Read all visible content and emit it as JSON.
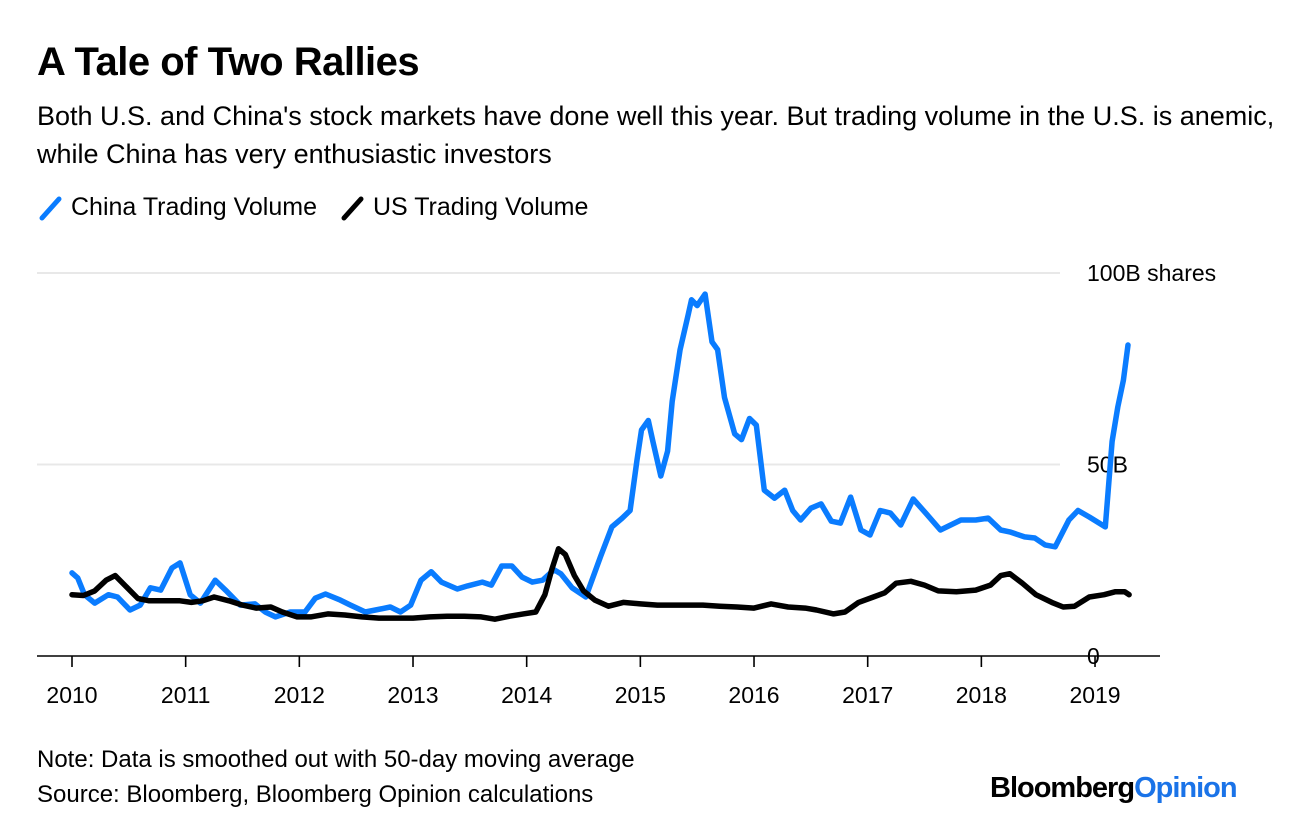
{
  "header": {
    "title": "A Tale of Two Rallies",
    "subtitle": "Both U.S. and China's stock markets have done well this year. But trading volume in the U.S. is anemic, while China has very enthusiastic investors"
  },
  "footer": {
    "note": "Note: Data is smoothed out with 50-day moving average",
    "source": "Source: Bloomberg, Bloomberg Opinion calculations",
    "logo_main": "Bloomberg",
    "logo_accent": "Opinion"
  },
  "colors": {
    "china": "#0a7cff",
    "us": "#000000",
    "gridline": "#e8e8e8",
    "logo_accent": "#1a73e8"
  },
  "chart_data": {
    "type": "line",
    "title": "A Tale of Two Rallies",
    "xlabel": "",
    "ylabel": "",
    "xlim": [
      2009.7,
      2019.6
    ],
    "ylim": [
      0,
      100
    ],
    "x_ticks": [
      2010,
      2011,
      2012,
      2013,
      2014,
      2015,
      2016,
      2017,
      2018,
      2019
    ],
    "x_tick_labels": [
      "2010",
      "2011",
      "2012",
      "2013",
      "2014",
      "2015",
      "2016",
      "2017",
      "2018",
      "2019"
    ],
    "y_ticks": [
      0,
      50,
      100
    ],
    "y_tick_labels": [
      "0",
      "50B",
      "100B shares"
    ],
    "grid": true,
    "legend_position": "top-left",
    "series": [
      {
        "name": "China Trading Volume",
        "color": "#0a7cff",
        "points": [
          [
            2010.0,
            21.7
          ],
          [
            2010.05,
            20.4
          ],
          [
            2010.11,
            16.0
          ],
          [
            2010.2,
            13.8
          ],
          [
            2010.32,
            16.0
          ],
          [
            2010.4,
            15.4
          ],
          [
            2010.51,
            12.0
          ],
          [
            2010.6,
            13.3
          ],
          [
            2010.69,
            17.8
          ],
          [
            2010.78,
            17.2
          ],
          [
            2010.88,
            23.0
          ],
          [
            2010.95,
            24.3
          ],
          [
            2011.04,
            16.0
          ],
          [
            2011.13,
            13.8
          ],
          [
            2011.26,
            19.8
          ],
          [
            2011.35,
            17.2
          ],
          [
            2011.48,
            13.3
          ],
          [
            2011.61,
            13.6
          ],
          [
            2011.7,
            11.5
          ],
          [
            2011.79,
            10.2
          ],
          [
            2011.92,
            11.5
          ],
          [
            2012.05,
            11.5
          ],
          [
            2012.14,
            15.1
          ],
          [
            2012.23,
            16.2
          ],
          [
            2012.36,
            14.6
          ],
          [
            2012.45,
            13.3
          ],
          [
            2012.58,
            11.5
          ],
          [
            2012.67,
            12.0
          ],
          [
            2012.8,
            12.8
          ],
          [
            2012.89,
            11.5
          ],
          [
            2012.98,
            13.3
          ],
          [
            2013.07,
            19.8
          ],
          [
            2013.16,
            22.0
          ],
          [
            2013.25,
            19.3
          ],
          [
            2013.39,
            17.5
          ],
          [
            2013.48,
            18.3
          ],
          [
            2013.61,
            19.3
          ],
          [
            2013.69,
            18.5
          ],
          [
            2013.78,
            23.5
          ],
          [
            2013.87,
            23.5
          ],
          [
            2013.96,
            20.6
          ],
          [
            2014.05,
            19.3
          ],
          [
            2014.14,
            19.8
          ],
          [
            2014.24,
            22.5
          ],
          [
            2014.3,
            21.5
          ],
          [
            2014.4,
            17.8
          ],
          [
            2014.52,
            15.4
          ],
          [
            2014.65,
            26.0
          ],
          [
            2014.75,
            33.7
          ],
          [
            2014.84,
            36.0
          ],
          [
            2014.91,
            38.0
          ],
          [
            2014.97,
            51.0
          ],
          [
            2015.01,
            59.0
          ],
          [
            2015.07,
            61.5
          ],
          [
            2015.11,
            56.0
          ],
          [
            2015.18,
            47.0
          ],
          [
            2015.24,
            53.5
          ],
          [
            2015.28,
            66.5
          ],
          [
            2015.35,
            80.0
          ],
          [
            2015.42,
            89.0
          ],
          [
            2015.45,
            93.0
          ],
          [
            2015.5,
            91.5
          ],
          [
            2015.57,
            94.5
          ],
          [
            2015.63,
            82.0
          ],
          [
            2015.68,
            80.0
          ],
          [
            2015.74,
            67.5
          ],
          [
            2015.83,
            58.0
          ],
          [
            2015.89,
            56.5
          ],
          [
            2015.96,
            62.0
          ],
          [
            2016.02,
            60.3
          ],
          [
            2016.09,
            43.3
          ],
          [
            2016.18,
            41.2
          ],
          [
            2016.27,
            43.3
          ],
          [
            2016.34,
            38.0
          ],
          [
            2016.41,
            35.5
          ],
          [
            2016.5,
            38.6
          ],
          [
            2016.59,
            39.7
          ],
          [
            2016.68,
            35.2
          ],
          [
            2016.76,
            34.7
          ],
          [
            2016.85,
            41.5
          ],
          [
            2016.94,
            32.9
          ],
          [
            2017.02,
            31.6
          ],
          [
            2017.11,
            38.0
          ],
          [
            2017.2,
            37.3
          ],
          [
            2017.29,
            34.2
          ],
          [
            2017.4,
            41.0
          ],
          [
            2017.51,
            37.3
          ],
          [
            2017.64,
            32.9
          ],
          [
            2017.73,
            34.2
          ],
          [
            2017.82,
            35.5
          ],
          [
            2017.95,
            35.5
          ],
          [
            2018.06,
            36.0
          ],
          [
            2018.17,
            32.9
          ],
          [
            2018.25,
            32.4
          ],
          [
            2018.38,
            31.1
          ],
          [
            2018.47,
            30.8
          ],
          [
            2018.56,
            29.0
          ],
          [
            2018.65,
            28.5
          ],
          [
            2018.77,
            35.5
          ],
          [
            2018.85,
            38.0
          ],
          [
            2018.95,
            36.3
          ],
          [
            2019.09,
            33.7
          ],
          [
            2019.15,
            56.0
          ],
          [
            2019.2,
            65.0
          ],
          [
            2019.25,
            72.0
          ],
          [
            2019.29,
            81.2
          ]
        ]
      },
      {
        "name": "US Trading Volume",
        "color": "#000000",
        "points": [
          [
            2010.0,
            16.0
          ],
          [
            2010.1,
            15.8
          ],
          [
            2010.2,
            17.0
          ],
          [
            2010.3,
            19.8
          ],
          [
            2010.38,
            21.0
          ],
          [
            2010.48,
            18.0
          ],
          [
            2010.58,
            15.0
          ],
          [
            2010.68,
            14.4
          ],
          [
            2010.8,
            14.4
          ],
          [
            2010.95,
            14.4
          ],
          [
            2011.05,
            14.0
          ],
          [
            2011.15,
            14.4
          ],
          [
            2011.25,
            15.4
          ],
          [
            2011.38,
            14.4
          ],
          [
            2011.5,
            13.3
          ],
          [
            2011.62,
            12.5
          ],
          [
            2011.75,
            12.8
          ],
          [
            2011.85,
            11.5
          ],
          [
            2011.98,
            10.2
          ],
          [
            2012.1,
            10.2
          ],
          [
            2012.25,
            11.0
          ],
          [
            2012.4,
            10.7
          ],
          [
            2012.55,
            10.2
          ],
          [
            2012.7,
            9.9
          ],
          [
            2012.85,
            9.9
          ],
          [
            2013.0,
            9.9
          ],
          [
            2013.15,
            10.2
          ],
          [
            2013.3,
            10.4
          ],
          [
            2013.45,
            10.4
          ],
          [
            2013.6,
            10.2
          ],
          [
            2013.72,
            9.6
          ],
          [
            2013.85,
            10.4
          ],
          [
            2013.97,
            11.0
          ],
          [
            2014.08,
            11.5
          ],
          [
            2014.16,
            16.0
          ],
          [
            2014.22,
            22.5
          ],
          [
            2014.28,
            28.0
          ],
          [
            2014.34,
            26.5
          ],
          [
            2014.42,
            21.0
          ],
          [
            2014.5,
            17.0
          ],
          [
            2014.6,
            14.6
          ],
          [
            2014.72,
            13.0
          ],
          [
            2014.85,
            14.0
          ],
          [
            2015.0,
            13.6
          ],
          [
            2015.15,
            13.3
          ],
          [
            2015.35,
            13.3
          ],
          [
            2015.55,
            13.3
          ],
          [
            2015.7,
            13.0
          ],
          [
            2015.85,
            12.8
          ],
          [
            2016.0,
            12.5
          ],
          [
            2016.15,
            13.6
          ],
          [
            2016.3,
            12.8
          ],
          [
            2016.45,
            12.5
          ],
          [
            2016.55,
            12.0
          ],
          [
            2016.7,
            11.0
          ],
          [
            2016.8,
            11.5
          ],
          [
            2016.92,
            14.0
          ],
          [
            2017.05,
            15.4
          ],
          [
            2017.15,
            16.5
          ],
          [
            2017.25,
            19.0
          ],
          [
            2017.38,
            19.5
          ],
          [
            2017.5,
            18.5
          ],
          [
            2017.62,
            17.0
          ],
          [
            2017.78,
            16.8
          ],
          [
            2017.95,
            17.2
          ],
          [
            2018.08,
            18.5
          ],
          [
            2018.17,
            21.0
          ],
          [
            2018.25,
            21.5
          ],
          [
            2018.36,
            19.0
          ],
          [
            2018.48,
            16.0
          ],
          [
            2018.62,
            14.0
          ],
          [
            2018.72,
            12.8
          ],
          [
            2018.82,
            13.0
          ],
          [
            2018.95,
            15.4
          ],
          [
            2019.08,
            16.0
          ],
          [
            2019.18,
            16.8
          ],
          [
            2019.26,
            16.8
          ],
          [
            2019.3,
            16.0
          ]
        ]
      }
    ]
  }
}
